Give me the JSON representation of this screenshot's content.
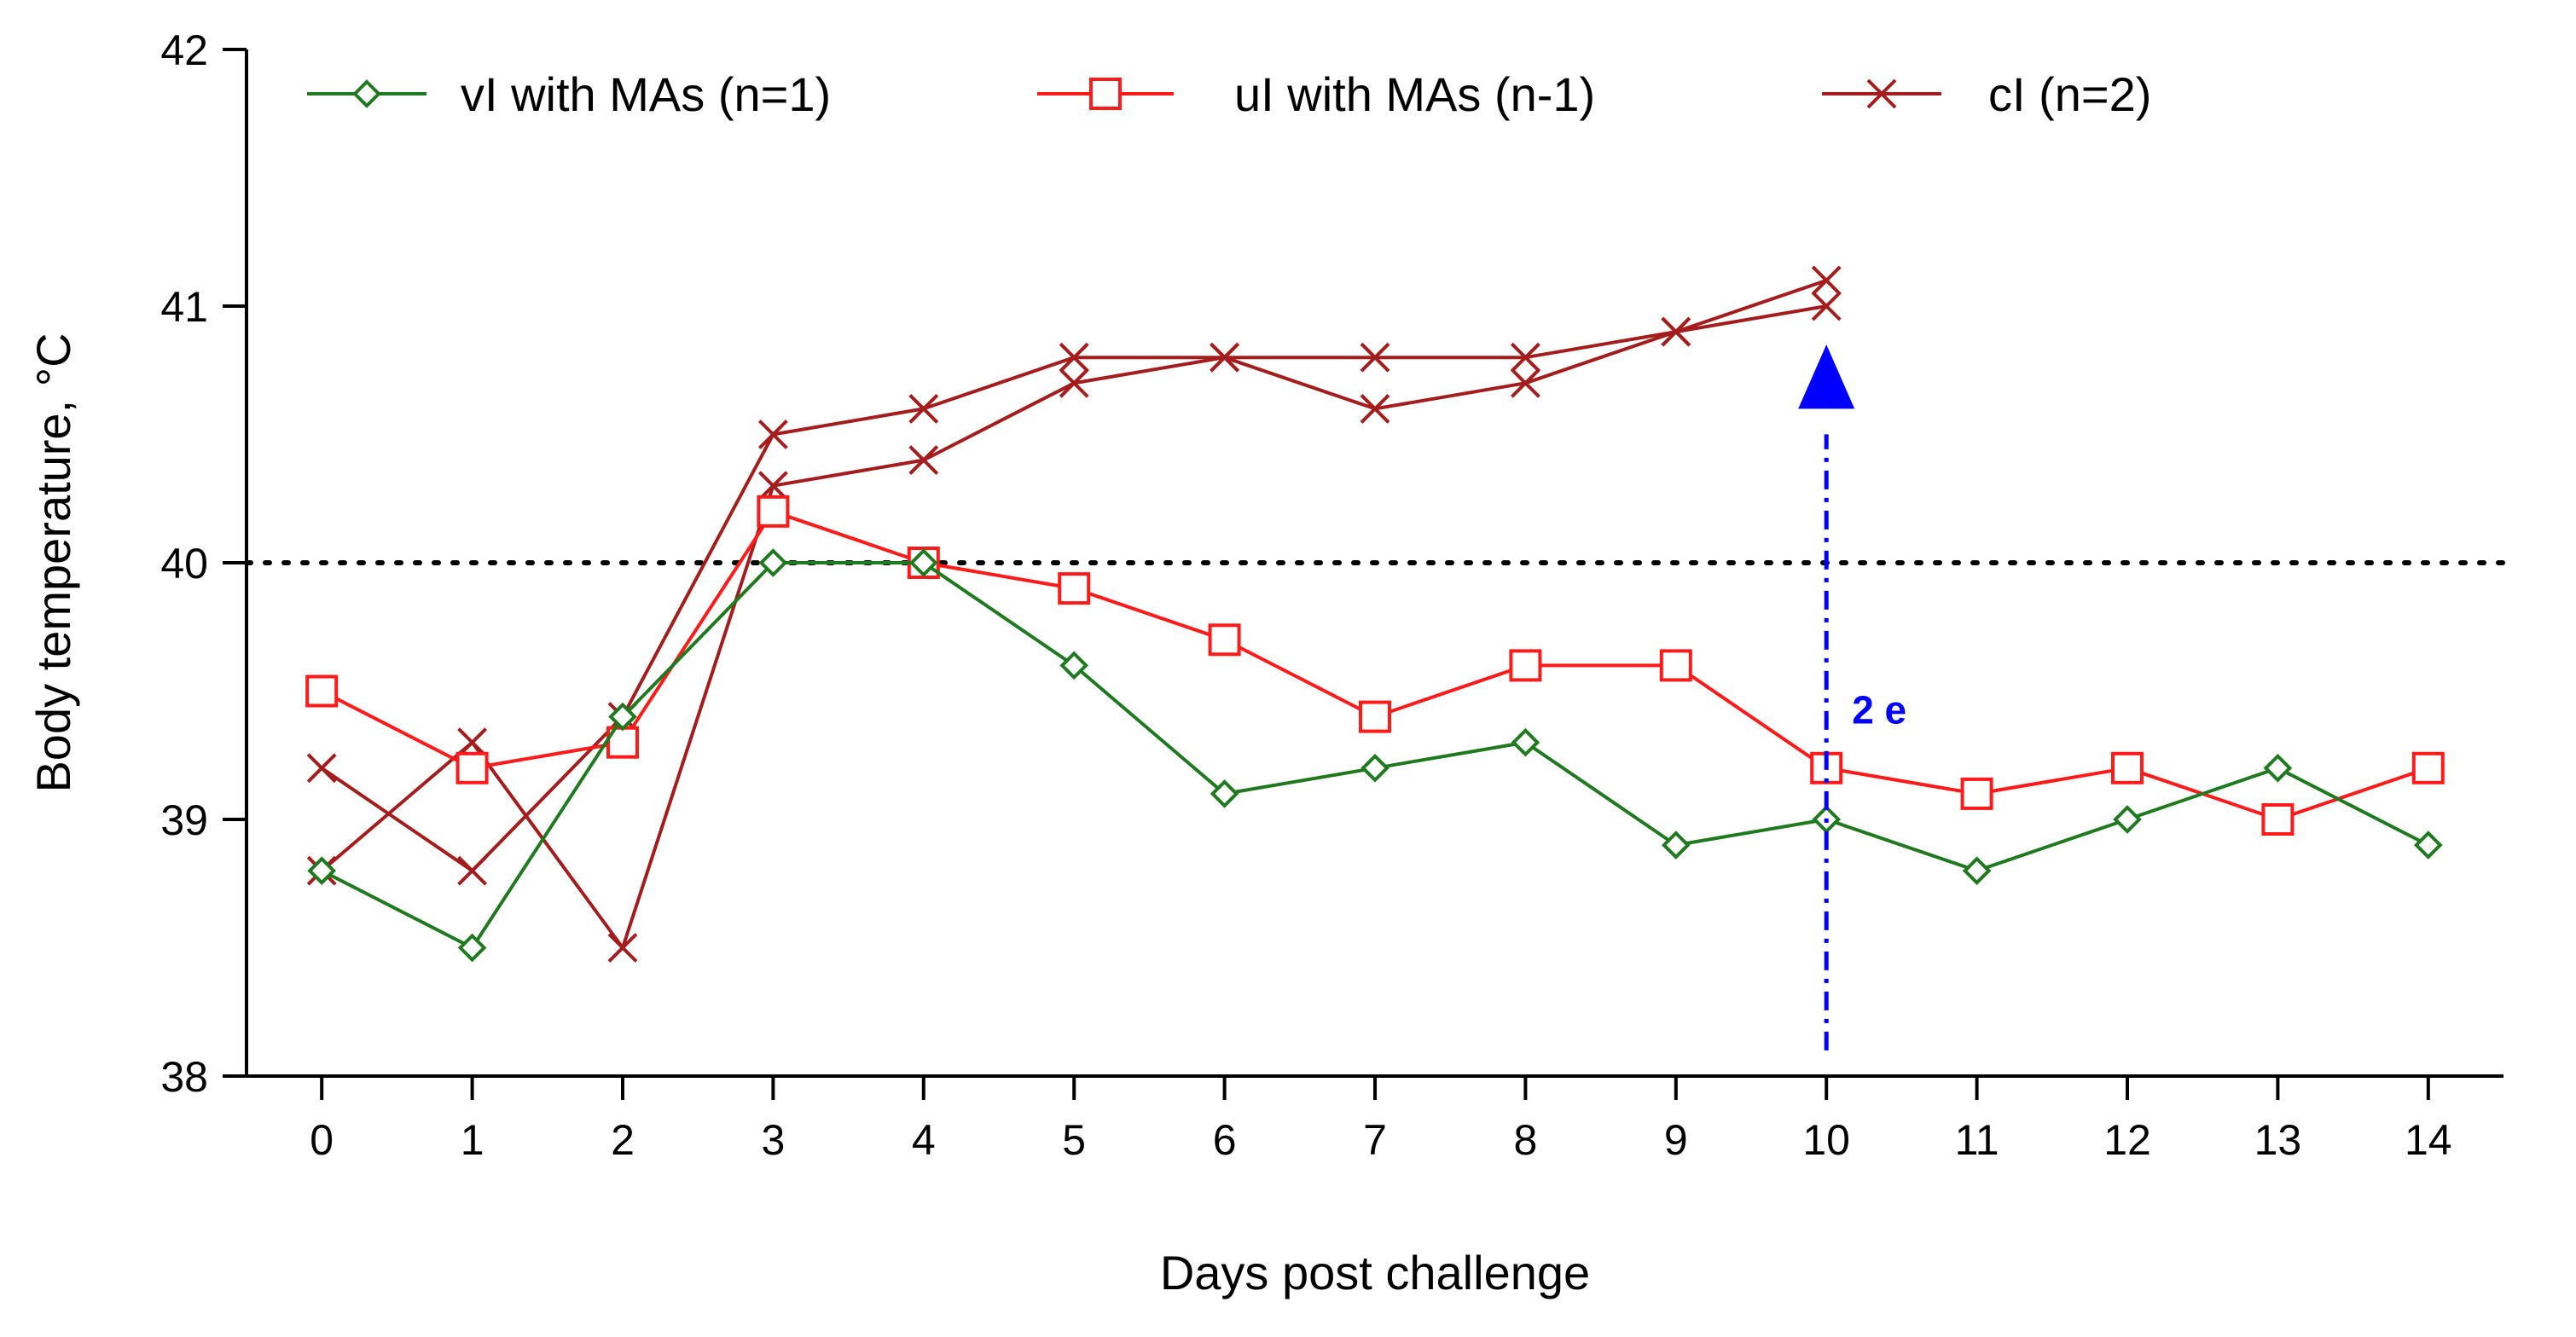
{
  "chart_data": {
    "type": "line",
    "xlabel": "Days post challenge",
    "ylabel": "Body temperature, °C",
    "xlim": [
      -0.5,
      14.5
    ],
    "ylim": [
      38,
      42
    ],
    "x_ticks": [
      0,
      1,
      2,
      3,
      4,
      5,
      6,
      7,
      8,
      9,
      10,
      11,
      12,
      13,
      14
    ],
    "y_ticks": [
      38,
      39,
      40,
      41,
      42
    ],
    "legend_position": "top",
    "threshold": {
      "y": 40,
      "style": "dotted",
      "color": "#000000"
    },
    "series": [
      {
        "name": "vI with MAs (n=1)",
        "marker": "diamond",
        "color": "#1f7a1f",
        "x": [
          0,
          1,
          2,
          3,
          4,
          5,
          6,
          7,
          8,
          9,
          10,
          11,
          12,
          13,
          14
        ],
        "values": [
          38.8,
          38.5,
          39.4,
          40.0,
          40.0,
          39.6,
          39.1,
          39.2,
          39.3,
          38.9,
          39.0,
          38.8,
          39.0,
          39.2,
          38.9
        ]
      },
      {
        "name": "uI with MAs (n-1)",
        "marker": "square",
        "color": "#ff1a1a",
        "x": [
          0,
          1,
          2,
          3,
          4,
          5,
          6,
          7,
          8,
          9,
          10,
          11,
          12,
          13,
          14
        ],
        "values": [
          39.5,
          39.2,
          39.3,
          40.2,
          40.0,
          39.9,
          39.7,
          39.4,
          39.6,
          39.6,
          39.2,
          39.1,
          39.2,
          39.0,
          39.2
        ]
      },
      {
        "name": "cI (n=2)",
        "marker": "x",
        "color": "#a51c1c",
        "x": [
          0,
          1,
          2,
          3,
          4,
          5,
          6,
          7,
          8,
          9,
          10
        ],
        "values": [
          39.2,
          38.8,
          39.4,
          40.5,
          40.6,
          40.8,
          40.8,
          40.8,
          40.8,
          40.9,
          41.1
        ]
      },
      {
        "name": "",
        "marker": "x",
        "color": "#a51c1c",
        "x": [
          0,
          1,
          2,
          3,
          4,
          5,
          6,
          7,
          8,
          9,
          10
        ],
        "values": [
          38.8,
          39.3,
          38.5,
          40.3,
          40.4,
          40.7,
          40.8,
          40.6,
          40.7,
          40.9,
          41.0
        ]
      }
    ],
    "annotations": [
      {
        "text": "2 e",
        "x": 10,
        "y_from": 38.1,
        "y_to": 40.6,
        "color": "#0000ff",
        "style": "dash-dot arrow"
      }
    ]
  }
}
